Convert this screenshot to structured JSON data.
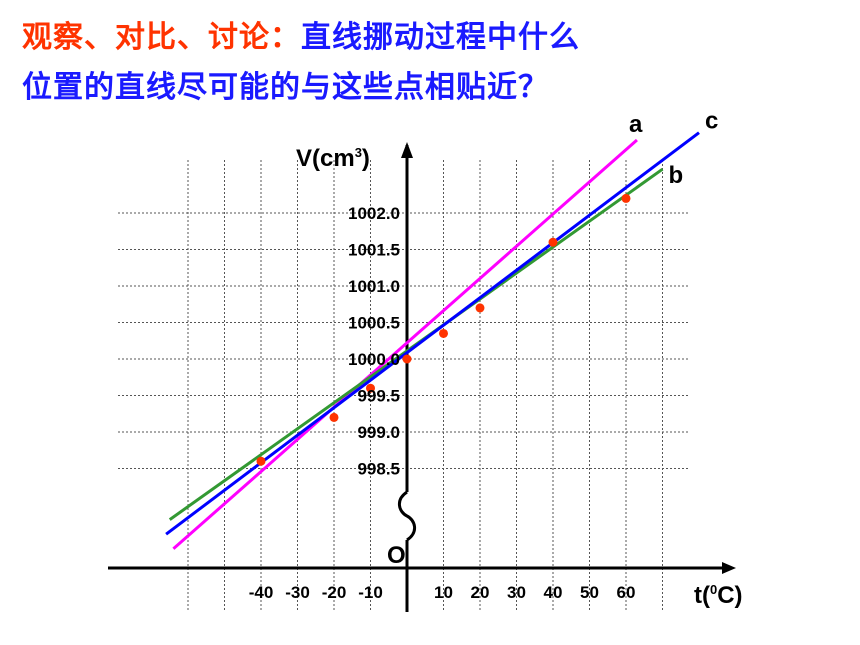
{
  "heading": {
    "line1_red": "观察、对比、讨论：",
    "line1_blue": "直线挪动过程中什么",
    "line2_blue": "位置的直线尽可能的与这些点相贴近？"
  },
  "colors": {
    "heading_red": "#ff3300",
    "heading_blue": "#1a1aff",
    "line_a": "#ff00ff",
    "line_b": "#339933",
    "line_c": "#0000ff",
    "points": "#ff3300"
  },
  "chart_data": {
    "type": "scatter",
    "xlabel_main": "t(",
    "xlabel_sup": "0",
    "xlabel_end": "C)",
    "ylabel_main": "V(cm",
    "ylabel_sup": "3",
    "ylabel_end": ")",
    "origin_label": "O",
    "x_ticks": [
      -40,
      -30,
      -20,
      -10,
      10,
      20,
      30,
      40,
      50,
      60
    ],
    "y_ticks": [
      "998.5",
      "999.0",
      "999.5",
      "1000.0",
      "1000.5",
      "1001.0",
      "1001.5",
      "1002.0"
    ],
    "ylim": [
      998.5,
      1002.0
    ],
    "grid": true,
    "y_axis_break": true,
    "points": [
      {
        "t": -40,
        "v": 998.6
      },
      {
        "t": -20,
        "v": 999.2
      },
      {
        "t": -10,
        "v": 999.6
      },
      {
        "t": 0,
        "v": 1000.0
      },
      {
        "t": 10,
        "v": 1000.35
      },
      {
        "t": 20,
        "v": 1000.7
      },
      {
        "t": 40,
        "v": 1001.6
      },
      {
        "t": 60,
        "v": 1002.2
      }
    ],
    "lines": [
      {
        "name": "a",
        "t_start": -64,
        "v_start": 997.4,
        "t_end": 63,
        "v_end": 1003.0
      },
      {
        "name": "b",
        "t_start": -65,
        "v_start": 997.8,
        "t_end": 70,
        "v_end": 1002.6
      },
      {
        "name": "c",
        "t_start": -66,
        "v_start": 997.6,
        "t_end": 80,
        "v_end": 1003.1
      }
    ]
  }
}
